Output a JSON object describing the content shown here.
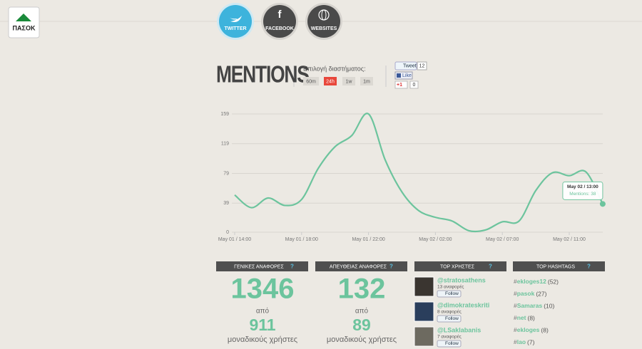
{
  "logo": "ΠΑΣΟΚ",
  "nav": [
    "TWITTER",
    "FACEBOOK",
    "WEBSITES"
  ],
  "header": {
    "title": "MENTIONS",
    "range_label": "Επιλογή διαστήματος:",
    "ranges": [
      "60m",
      "24h",
      "1w",
      "1m"
    ],
    "active_range": 1
  },
  "social": {
    "tweet": "Tweet",
    "tweet_count": 12,
    "like": "Like",
    "plusone": "+1",
    "plusone_count": 0
  },
  "chart_data": {
    "type": "line",
    "color": "#6cc49d",
    "categories": [
      "May 01 / 14:00",
      null,
      null,
      null,
      "May 01 / 18:00",
      null,
      null,
      null,
      "May 01 / 22:00",
      null,
      null,
      null,
      "May 02 / 02:00",
      null,
      null,
      null,
      "May 02 / 07:00",
      null,
      null,
      null,
      "May 02 / 11:00",
      null,
      null
    ],
    "values": [
      50,
      33,
      46,
      36,
      44,
      86,
      115,
      130,
      159,
      97,
      54,
      29,
      20,
      15,
      2,
      3,
      14,
      15,
      56,
      80,
      76,
      81,
      38
    ],
    "ylim": [
      0,
      159
    ],
    "yticks": [
      0,
      39,
      79,
      119,
      159
    ],
    "grid": true,
    "tooltip": {
      "title": "May 02 / 13:00",
      "label": "Mentions: 38"
    }
  },
  "stats": [
    {
      "title": "ΓΕΝΙΚΕΣ ΑΝΑΦΟΡΕΣ",
      "help": "?",
      "total": 1346,
      "from": "από",
      "unique": 911,
      "unique_label": "μοναδικούς χρήστες"
    },
    {
      "title": "ΑΠΕΥΘΕΙΑΣ ΑΝΑΦΟΡΕΣ",
      "help": "?",
      "total": 132,
      "from": "από",
      "unique": 89,
      "unique_label": "μοναδικούς χρήστες"
    }
  ],
  "top_users": {
    "title": "TOP ΧΡΗΣΤΕΣ",
    "help": "?",
    "users": [
      {
        "handle": "@stratosathens",
        "mentions": "13 αναφορές",
        "follow": "Follow"
      },
      {
        "handle": "@dimokrateskriti",
        "mentions": "8 αναφορές",
        "follow": "Follow"
      },
      {
        "handle": "@LSaklabanis",
        "mentions": "7 αναφορές",
        "follow": "Follow"
      }
    ]
  },
  "top_hashtags": {
    "title": "TOP HASHTAGS",
    "help": "?",
    "tags": [
      {
        "tag": "#ekloges12",
        "count": "(52)"
      },
      {
        "tag": "#pasok",
        "count": "(27)"
      },
      {
        "tag": "#Samaras",
        "count": "(10)"
      },
      {
        "tag": "#net",
        "count": "(8)"
      },
      {
        "tag": "#ekloges",
        "count": "(8)"
      },
      {
        "tag": "#lao",
        "count": "(7)"
      }
    ]
  }
}
